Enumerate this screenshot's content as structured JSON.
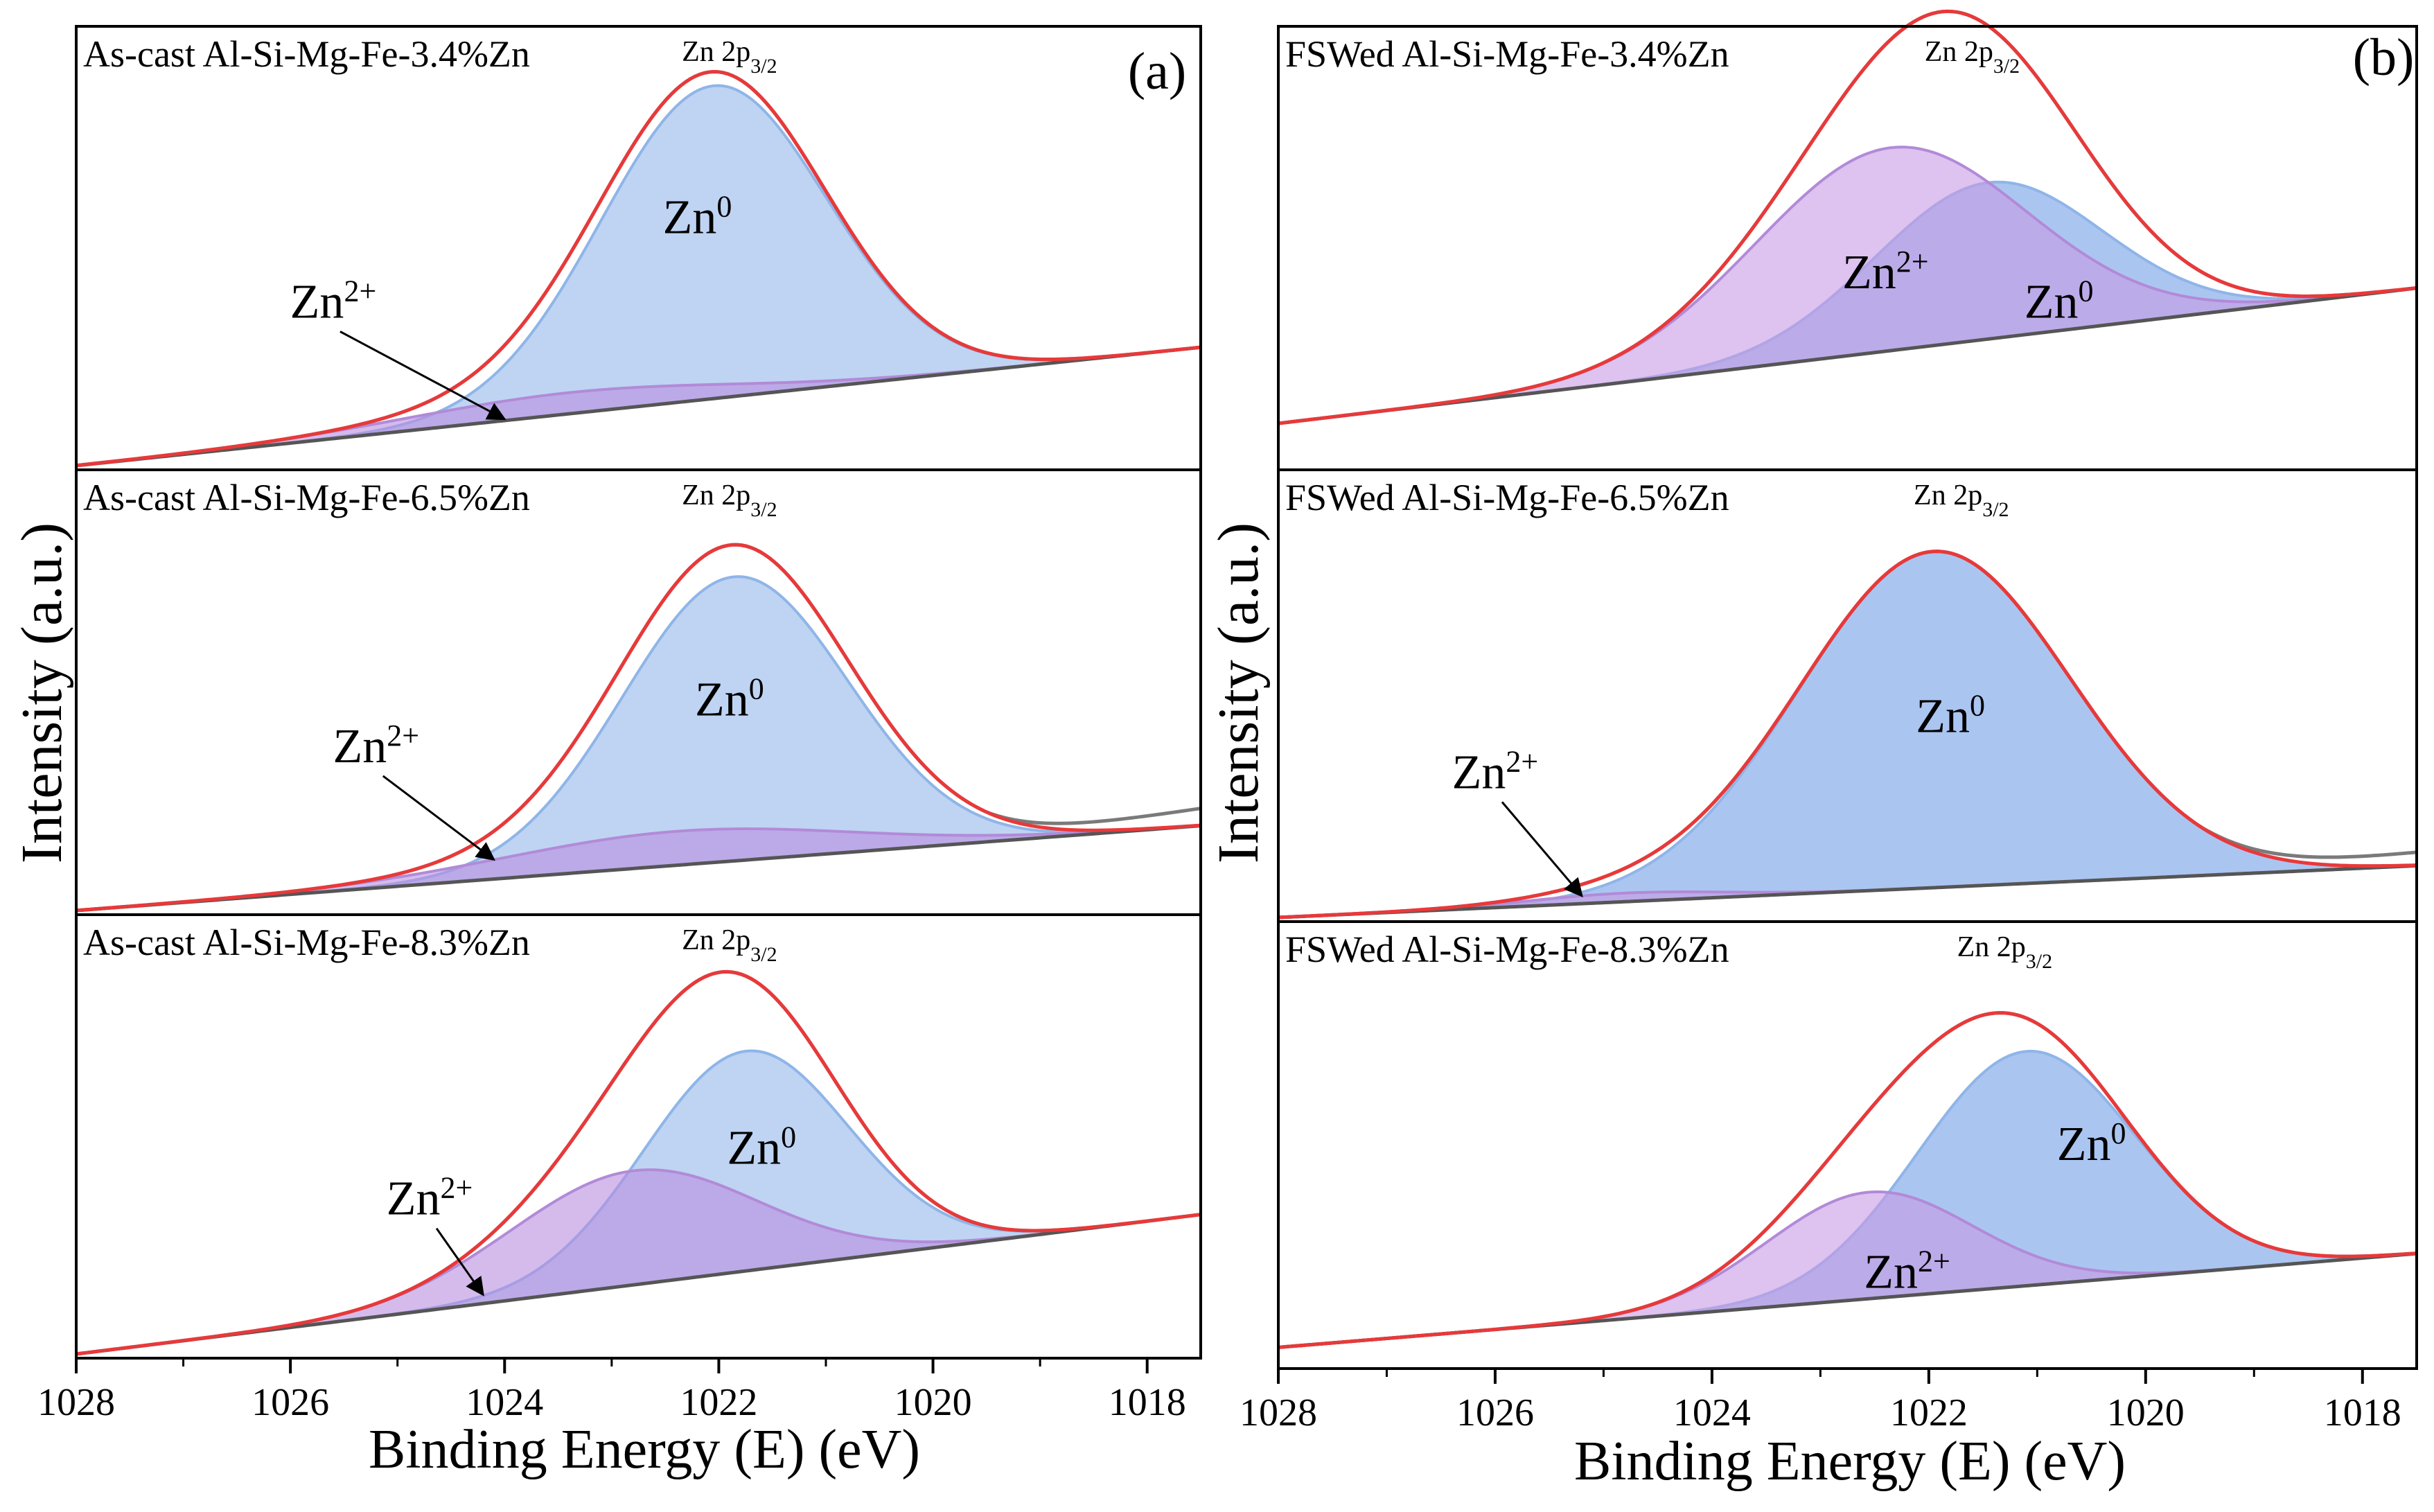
{
  "chart_data": [
    {
      "type": "line",
      "panel": "(a)",
      "xlabel": "Binding Energy (E) (eV)",
      "ylabel": "Intensity (a.u.)",
      "xlim": [
        1028,
        1017.5
      ],
      "xticks": [
        "1028",
        "1026",
        "1024",
        "1022",
        "1020",
        "1018"
      ],
      "colors": {
        "envelope": "#e8393a",
        "background": "#555555",
        "raw": "#7a7a7a",
        "zn0_fill": "#a9c6ee",
        "zn0_line": "#8fb5e8",
        "zn2_fill": "#b98ee0",
        "zn2_line": "#b28ad8"
      },
      "subplots": [
        {
          "sample": "As-cast Al-Si-Mg-Fe-3.4%Zn",
          "peak_label": "Zn 2p",
          "peak_sub": "3/2",
          "peak_label_pos": 1021.9,
          "zn0": {
            "label": "Zn",
            "sup": "0",
            "center": 1022.05,
            "amplitude": 0.74,
            "width": 1.05
          },
          "zn2": {
            "label": "Zn",
            "sup": "2+",
            "center": 1023.4,
            "amplitude": 0.05,
            "width": 1.5
          },
          "background": {
            "start": 0.0,
            "end": 0.28
          },
          "raw_tail": 0.0,
          "zn0_label_pos": [
            1022.2,
            0.55
          ],
          "zn2_label_pos": [
            1025.6,
            0.35
          ],
          "zn2_arrow_to": [
            1024.0,
            0.11
          ]
        },
        {
          "sample": "As-cast Al-Si-Mg-Fe-6.5%Zn",
          "peak_label": "Zn 2p",
          "peak_sub": "3/2",
          "peak_label_pos": 1021.9,
          "zn0": {
            "label": "Zn",
            "sup": "0",
            "center": 1021.85,
            "amplitude": 0.67,
            "width": 1.05
          },
          "zn2": {
            "label": "Zn",
            "sup": "2+",
            "center": 1022.4,
            "amplitude": 0.08,
            "width": 1.6
          },
          "background": {
            "start": 0.0,
            "end": 0.2
          },
          "raw_tail": 0.04,
          "zn0_label_pos": [
            1021.9,
            0.46
          ],
          "zn2_label_pos": [
            1025.2,
            0.35
          ],
          "zn2_arrow_to": [
            1024.1,
            0.12
          ]
        },
        {
          "sample": "As-cast Al-Si-Mg-Fe-8.3%Zn",
          "peak_label": "Zn 2p",
          "peak_sub": "3/2",
          "peak_label_pos": 1021.9,
          "zn0": {
            "label": "Zn",
            "sup": "0",
            "center": 1021.75,
            "amplitude": 0.52,
            "width": 0.95
          },
          "zn2": {
            "label": "Zn",
            "sup": "2+",
            "center": 1022.8,
            "amplitude": 0.27,
            "width": 1.15
          },
          "background": {
            "start": 0.0,
            "end": 0.33
          },
          "raw_tail": 0.0,
          "zn0_label_pos": [
            1021.6,
            0.45
          ],
          "zn2_label_pos": [
            1024.7,
            0.33
          ],
          "zn2_arrow_to": [
            1024.2,
            0.14
          ]
        }
      ]
    },
    {
      "type": "line",
      "panel": "(b)",
      "xlabel": "Binding Energy (E) (eV)",
      "ylabel": "Intensity (a.u.)",
      "xlim": [
        1028,
        1017.5
      ],
      "xticks": [
        "1028",
        "1026",
        "1024",
        "1022",
        "1020",
        "1018"
      ],
      "colors": {
        "envelope": "#e8393a",
        "background": "#555555",
        "raw": "#7a7a7a",
        "zn0_fill": "#8fb2ec",
        "zn0_line": "#8fb5e8",
        "zn2_fill": "#c89ae4",
        "zn2_line": "#b28ad8"
      },
      "subplots": [
        {
          "sample": "FSWed Al-Si-Mg-Fe-3.4%Zn",
          "peak_label": "Zn 2p",
          "peak_sub": "3/2",
          "peak_label_pos": 1021.6,
          "zn0": {
            "label": "Zn",
            "sup": "0",
            "center": 1021.45,
            "amplitude": 0.37,
            "width": 1.05
          },
          "zn2": {
            "label": "Zn",
            "sup": "2+",
            "center": 1022.35,
            "amplitude": 0.48,
            "width": 1.25
          },
          "background": {
            "start": 0.1,
            "end": 0.42
          },
          "raw_tail": 0.0,
          "zn0_label_pos": [
            1020.8,
            0.35
          ],
          "zn2_label_pos": [
            1022.4,
            0.42
          ],
          "zn2_arrow_to": null
        },
        {
          "sample": "FSWed Al-Si-Mg-Fe-6.5%Zn",
          "peak_label": "Zn 2p",
          "peak_sub": "3/2",
          "peak_label_pos": 1021.7,
          "zn0": {
            "label": "Zn",
            "sup": "0",
            "center": 1021.95,
            "amplitude": 0.78,
            "width": 1.25
          },
          "zn2": {
            "label": "Zn",
            "sup": "2+",
            "center": 1024.8,
            "amplitude": 0.02,
            "width": 0.9
          },
          "background": {
            "start": 0.0,
            "end": 0.12
          },
          "raw_tail": 0.03,
          "zn0_label_pos": [
            1021.8,
            0.43
          ],
          "zn2_label_pos": [
            1026.0,
            0.3
          ],
          "zn2_arrow_to": [
            1025.2,
            0.05
          ]
        },
        {
          "sample": "FSWed Al-Si-Mg-Fe-8.3%Zn",
          "peak_label": "Zn 2p",
          "peak_sub": "3/2",
          "peak_label_pos": 1021.3,
          "zn0": {
            "label": "Zn",
            "sup": "0",
            "center": 1021.1,
            "amplitude": 0.55,
            "width": 1.0
          },
          "zn2": {
            "label": "Zn",
            "sup": "2+",
            "center": 1022.55,
            "amplitude": 0.25,
            "width": 0.95
          },
          "background": {
            "start": 0.04,
            "end": 0.26
          },
          "raw_tail": 0.0,
          "zn0_label_pos": [
            1020.5,
            0.48
          ],
          "zn2_label_pos": [
            1022.2,
            0.18
          ],
          "zn2_arrow_to": null
        }
      ]
    }
  ]
}
